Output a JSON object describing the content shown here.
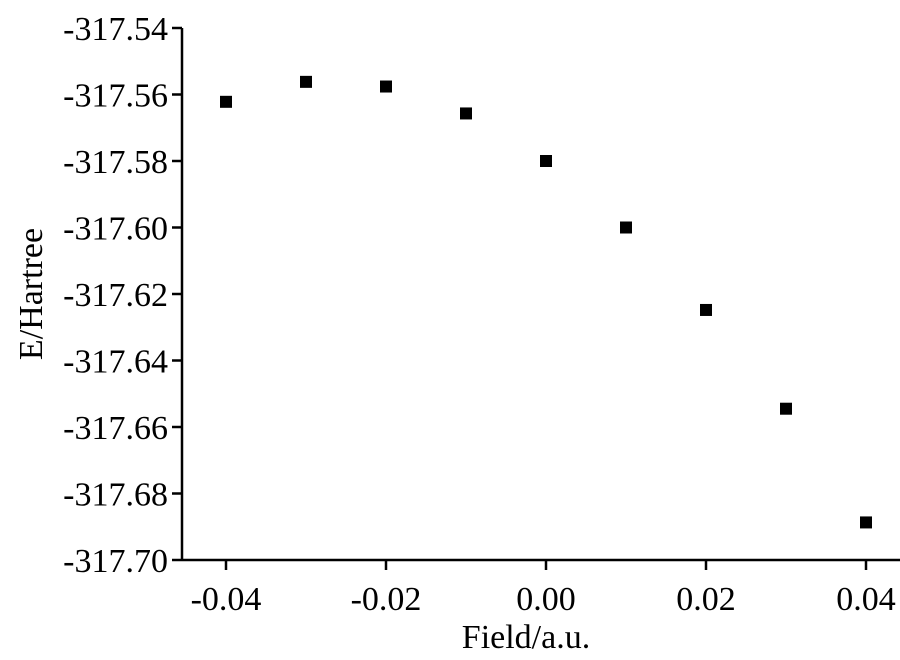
{
  "chart_data": {
    "type": "scatter",
    "title": "",
    "xlabel": "Field/a.u.",
    "ylabel": "E/Hartree",
    "xlim": [
      -0.045,
      0.045
    ],
    "ylim": [
      -317.7,
      -317.54
    ],
    "xticks": [
      -0.04,
      -0.02,
      0.0,
      0.02,
      0.04
    ],
    "xtick_labels": [
      "-0.04",
      "-0.02",
      "0.00",
      "0.02",
      "0.04"
    ],
    "yticks": [
      -317.54,
      -317.56,
      -317.58,
      -317.6,
      -317.62,
      -317.64,
      -317.66,
      -317.68,
      -317.7
    ],
    "ytick_labels": [
      "-317.54",
      "-317.56",
      "-317.58",
      "-317.60",
      "-317.62",
      "-317.64",
      "-317.66",
      "-317.68",
      "-317.70"
    ],
    "grid": false,
    "legend": "none",
    "series": [
      {
        "marker": "square",
        "color": "#000000",
        "x": [
          -0.04,
          -0.03,
          -0.02,
          -0.01,
          0.0,
          0.01,
          0.02,
          0.03,
          0.04
        ],
        "y": [
          -317.5622,
          -317.5562,
          -317.5576,
          -317.5657,
          -317.58,
          -317.6,
          -317.6248,
          -317.6545,
          -317.6887
        ]
      }
    ],
    "fit": {
      "type": "polynomial",
      "x_range": [
        -0.04,
        0.04
      ],
      "color": "#000000"
    }
  }
}
